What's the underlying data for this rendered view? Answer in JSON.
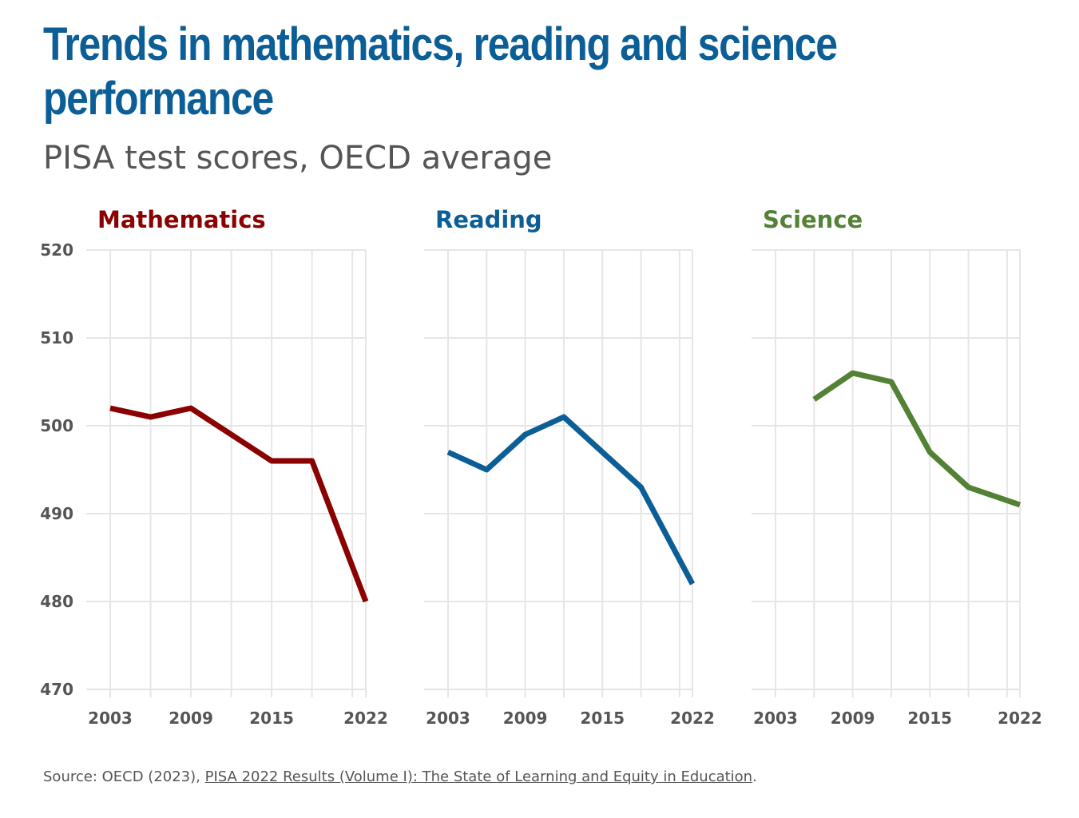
{
  "header": {
    "title": "Trends in mathematics, reading and science performance",
    "subtitle": "PISA test scores, OECD average"
  },
  "footer": {
    "source_prefix": "Source: OECD (2023), ",
    "source_link": "PISA 2022 Results (Volume I): The State of Learning and Equity in Education",
    "source_suffix": "."
  },
  "chart_data": [
    {
      "type": "line",
      "title": "Mathematics",
      "color": "#8b0000",
      "x": [
        2003,
        2006,
        2009,
        2012,
        2015,
        2018,
        2022
      ],
      "series": [
        {
          "values": [
            502,
            501,
            502,
            499,
            496,
            496,
            480
          ]
        }
      ],
      "xticks": [
        "2003",
        "2009",
        "2015",
        "2022"
      ],
      "yticks": [
        "470",
        "480",
        "490",
        "500",
        "510",
        "520"
      ],
      "xlim": [
        2003,
        2022
      ],
      "ylim": [
        470,
        520
      ],
      "grid": true
    },
    {
      "type": "line",
      "title": "Reading",
      "color": "#0c5e96",
      "x": [
        2003,
        2006,
        2009,
        2012,
        2015,
        2018,
        2022
      ],
      "series": [
        {
          "values": [
            497,
            495,
            499,
            501,
            497,
            493,
            482
          ]
        }
      ],
      "xticks": [
        "2003",
        "2009",
        "2015",
        "2022"
      ],
      "yticks": [
        "470",
        "480",
        "490",
        "500",
        "510",
        "520"
      ],
      "xlim": [
        2003,
        2022
      ],
      "ylim": [
        470,
        520
      ],
      "grid": true
    },
    {
      "type": "line",
      "title": "Science",
      "color": "#538135",
      "x": [
        2006,
        2009,
        2012,
        2015,
        2018,
        2022
      ],
      "series": [
        {
          "values": [
            503,
            506,
            505,
            497,
            493,
            491
          ]
        }
      ],
      "xticks": [
        "2003",
        "2009",
        "2015",
        "2022"
      ],
      "yticks": [
        "470",
        "480",
        "490",
        "500",
        "510",
        "520"
      ],
      "xlim": [
        2003,
        2022
      ],
      "ylim": [
        470,
        520
      ],
      "grid": true
    }
  ]
}
